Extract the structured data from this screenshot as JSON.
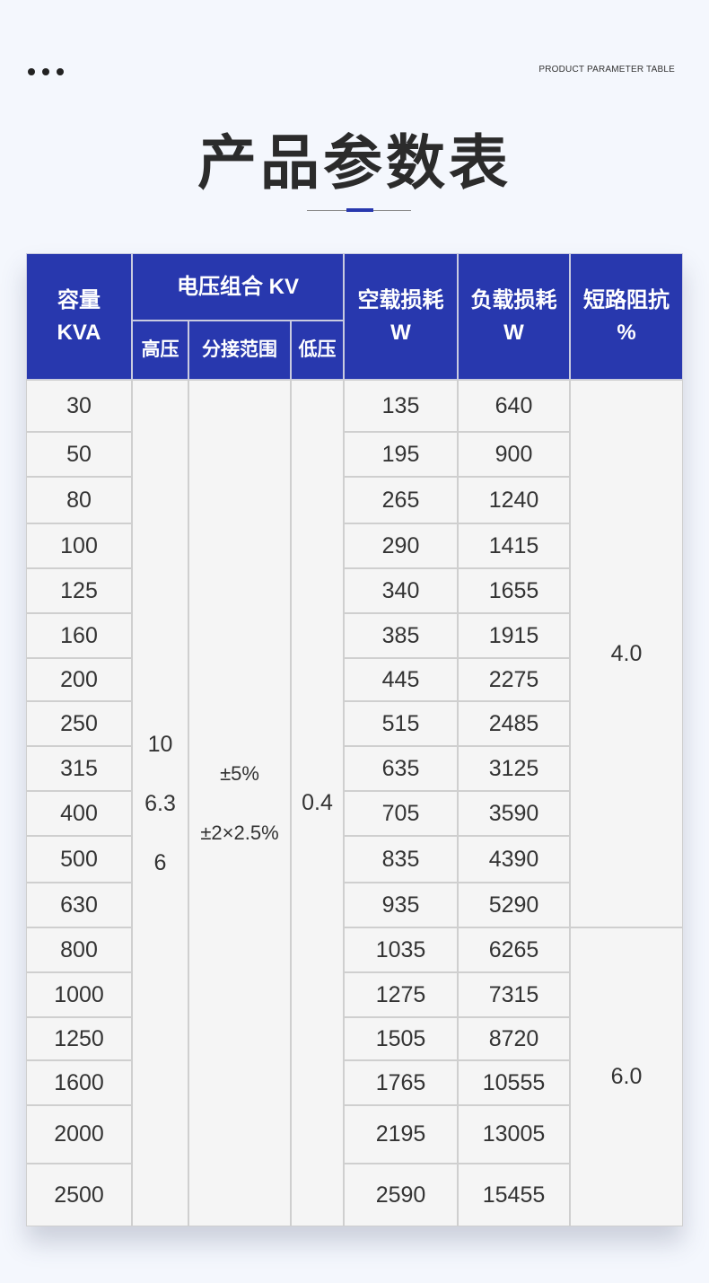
{
  "header": {
    "label": "PRODUCT PARAMETER TABLE",
    "title": "产品参数表"
  },
  "colors": {
    "accent": "#2838ae",
    "background": "#f4f7fd",
    "cell": "#f5f5f5"
  },
  "table": {
    "headers": {
      "capacity": [
        "容量",
        "KVA"
      ],
      "voltage_group": "电压组合 KV",
      "high_voltage": "高压",
      "tap_range": "分接范围",
      "low_voltage": "低压",
      "no_load_loss": [
        "空载损耗",
        "W"
      ],
      "load_loss": [
        "负载损耗",
        "W"
      ],
      "impedance": [
        "短路阻抗",
        "%"
      ]
    },
    "capacity": [
      "30",
      "50",
      "80",
      "100",
      "125",
      "160",
      "200",
      "250",
      "315",
      "400",
      "500",
      "630",
      "800",
      "1000",
      "1250",
      "1600",
      "2000",
      "2500"
    ],
    "high_voltage": [
      "10",
      "6.3",
      "6"
    ],
    "tap_range": [
      "±5%",
      "±2×2.5%"
    ],
    "low_voltage": "0.4",
    "no_load_loss": [
      "135",
      "195",
      "265",
      "290",
      "340",
      "385",
      "445",
      "515",
      "635",
      "705",
      "835",
      "935",
      "1035",
      "1275",
      "1505",
      "1765",
      "2195",
      "2590"
    ],
    "load_loss": [
      "640",
      "900",
      "1240",
      "1415",
      "1655",
      "1915",
      "2275",
      "2485",
      "3125",
      "3590",
      "4390",
      "5290",
      "6265",
      "7315",
      "8720",
      "10555",
      "13005",
      "15455"
    ],
    "impedance": [
      {
        "value": "4.0",
        "rows": 12
      },
      {
        "value": "6.0",
        "rows": 6
      }
    ]
  }
}
